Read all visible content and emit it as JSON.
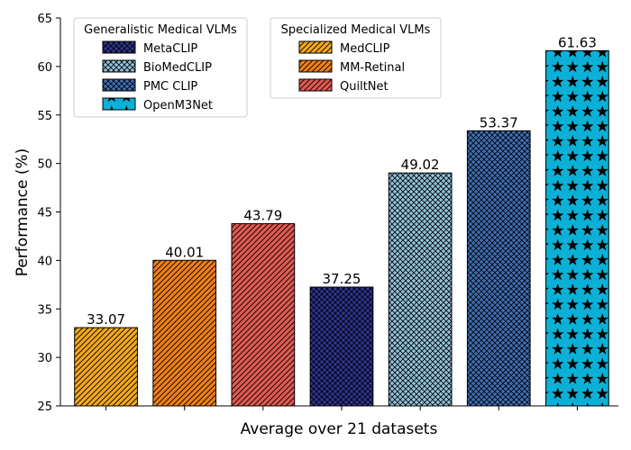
{
  "chart_data": {
    "type": "bar",
    "title": "",
    "xlabel": "Average over 21 datasets",
    "ylabel": "Performance (%)",
    "ylim": [
      25,
      65
    ],
    "yticks": [
      25,
      30,
      35,
      40,
      45,
      50,
      55,
      60,
      65
    ],
    "grid": false,
    "bars": [
      {
        "name": "MedCLIP",
        "value": 33.07,
        "label": "33.07",
        "color": "#f5a81c",
        "hatch": "diagonal"
      },
      {
        "name": "MM-Retinal",
        "value": 40.01,
        "label": "40.01",
        "color": "#f07f15",
        "hatch": "diagonal"
      },
      {
        "name": "QuiltNet",
        "value": 43.79,
        "label": "43.79",
        "color": "#e05a52",
        "hatch": "diagonal"
      },
      {
        "name": "MetaCLIP",
        "value": 37.25,
        "label": "37.25",
        "color": "#2e3490",
        "hatch": "cross"
      },
      {
        "name": "BioMedCLIP",
        "value": 49.02,
        "label": "49.02",
        "color": "#90c3dd",
        "hatch": "cross"
      },
      {
        "name": "PMC CLIP",
        "value": 53.37,
        "label": "53.37",
        "color": "#3f6fb5",
        "hatch": "cross"
      },
      {
        "name": "OpenM3Net",
        "value": 61.63,
        "label": "61.63",
        "color": "#0bb0d6",
        "hatch": "star"
      }
    ],
    "legends": [
      {
        "title": "Generalistic Medical VLMs",
        "placement": "top-left",
        "entries": [
          "MetaCLIP",
          "BioMedCLIP",
          "PMC CLIP",
          "OpenM3Net"
        ]
      },
      {
        "title": "Specialized Medical VLMs",
        "placement": "top-center",
        "entries": [
          "MedCLIP",
          "MM-Retinal",
          "QuiltNet"
        ]
      }
    ]
  }
}
